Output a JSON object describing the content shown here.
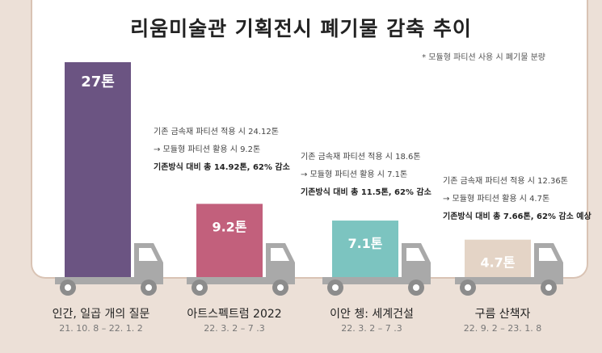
{
  "chart_data": {
    "type": "bar",
    "title": "리움미술관 기획전시 폐기물 감축 추이",
    "note": "* 모듈형 파티션 사용 시 폐기물 분량",
    "unit": "톤",
    "categories": [
      "인간, 일곱 개의 질문",
      "아트스펙트럼 2022",
      "이안 쳉: 세계건설",
      "구름 산책자"
    ],
    "periods": [
      "21. 10. 8 – 22. 1. 2",
      "22. 3. 2 – 7 .3",
      "22. 3. 2 – 7 .3",
      "22. 9. 2 – 23. 1. 8"
    ],
    "values": [
      27,
      9.2,
      7.1,
      4.7
    ],
    "value_labels": [
      "27톤",
      "9.2톤",
      "7.1톤",
      "4.7톤"
    ],
    "colors": [
      "#6b5482",
      "#c2607c",
      "#7cc4c0",
      "#e4d4c6"
    ],
    "annotations": [
      null,
      [
        "기존 금속재 파티션 적용 시 24.12톤",
        "→ 모듈형 파티션 활용 시  9.2톤",
        "기존방식 대비 총 14.92톤, 62% 감소"
      ],
      [
        "기존 금속재 파티션 적용 시 18.6톤",
        "→ 모듈형 파티션 활용 시  7.1톤",
        "기존방식 대비 총 11.5톤,  62% 감소"
      ],
      [
        "기존 금속재 파티션 적용 시 12.36톤",
        "→ 모듈형 파티션 활용 시  4.7톤",
        "기존방식 대비  총 7.66톤, 62% 감소 예상"
      ]
    ]
  }
}
